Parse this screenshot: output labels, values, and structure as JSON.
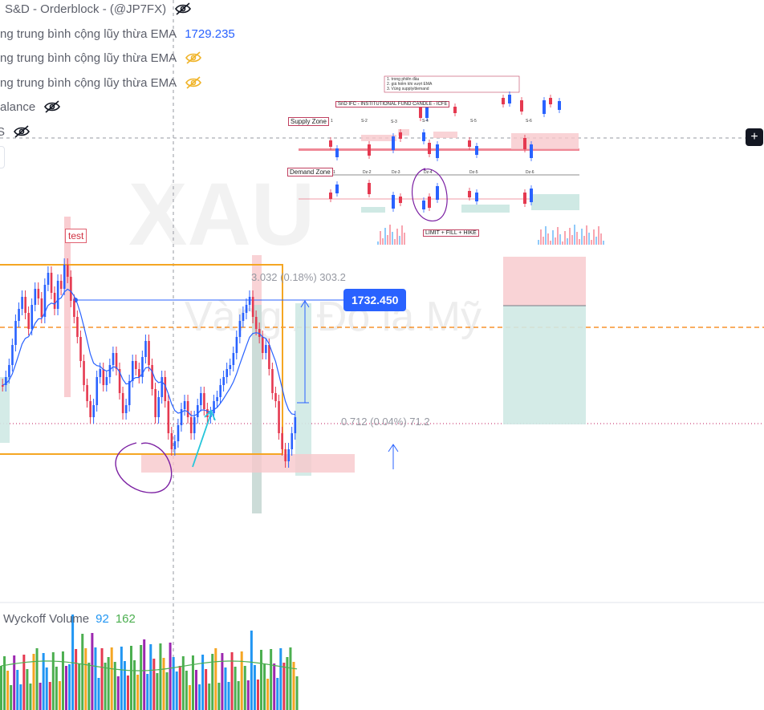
{
  "legend": {
    "rows": [
      {
        "text": "S&D - Orderblock - (@JP7FX)",
        "value": "",
        "icon": "eye-slash-icon",
        "icon_color": "#131722"
      },
      {
        "text": "ng trung bình cộng lũy thừa EMA",
        "value": "1729.235",
        "value_color": "#2962ff"
      },
      {
        "text": "ng trung bình cộng lũy thừa EMA",
        "value": "",
        "icon": "eye-slash-icon",
        "icon_color": "#f0b429"
      },
      {
        "text": "ng trung bình cộng lũy thừa EMA",
        "value": "",
        "icon": "eye-slash-icon",
        "icon_color": "#f0b429"
      },
      {
        "text": "alance",
        "value": "",
        "icon": "eye-slash-icon",
        "icon_color": "#131722"
      },
      {
        "text": "S",
        "value": "",
        "icon": "eye-slash-icon",
        "icon_color": "#131722"
      }
    ]
  },
  "watermark": {
    "symbol": "XAU",
    "description": "Vàng / Đô la Mỹ"
  },
  "price_tag": {
    "label": "1732.450",
    "color": "#2962ff"
  },
  "measure": {
    "top": "3.032 (0.18%) 303.2",
    "bottom": "0.712 (0.04%) 71.2"
  },
  "annotation": {
    "test": "test"
  },
  "inset": {
    "title": "SnD IFC - INSTITUTIONAL FUND CANDLE - ICFE",
    "supply_label": "Supply Zone",
    "demand_label": "Demand Zone",
    "hike_label": "LIMIT + FILL + HIKE",
    "notes": [
      "1. trong phiên đầu",
      "2. giá hiếm khi vượt EMA",
      "3. Vùng supply/demand"
    ],
    "supply_tags": [
      "1",
      "S-2",
      "S-3",
      "S-4",
      "S-5",
      "S-6"
    ],
    "demand_tags": [
      "1",
      "Dz-2",
      "Dz-3",
      "Dz-4",
      "Dz-5",
      "Dz-6"
    ]
  },
  "volume_pane": {
    "title": "Wyckoff Volume",
    "value1": "92",
    "value1_color": "#2196f3",
    "value2": "162",
    "value2_color": "#4caf50"
  },
  "colors": {
    "up": "#2962ff",
    "down": "#e53950",
    "box": "#f5a623",
    "ema": "#2962ff",
    "supply": "#f8c8cc",
    "demand": "#cfe9e4",
    "purple": "#7b1fa2",
    "teal": "#26c6da",
    "orange_dashed": "#f57c00"
  },
  "icons": {
    "add": "plus-icon"
  }
}
